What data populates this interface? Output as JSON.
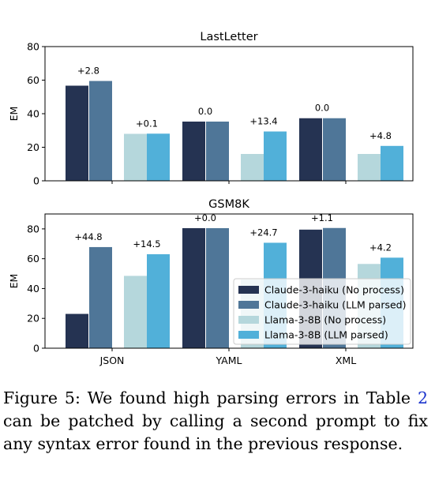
{
  "figure": {
    "colors": [
      "#253352",
      "#4f7698",
      "#b5d7dc",
      "#51b0d9"
    ],
    "legend_placement": "lower-right"
  },
  "chart_data": [
    {
      "type": "bar",
      "title": "LastLetter",
      "ylabel": "EM",
      "ylim": [
        0,
        80
      ],
      "yticks": [
        0,
        20,
        40,
        60,
        80
      ],
      "categories": [
        "JSON",
        "YAML",
        "XML"
      ],
      "series": [
        {
          "name": "Claude-3-haiku (No process)",
          "values": [
            56.7,
            35.3,
            37.3
          ]
        },
        {
          "name": "Claude-3-haiku (LLM parsed)",
          "values": [
            59.5,
            35.3,
            37.3
          ]
        },
        {
          "name": "Llama-3-8B (No process)",
          "values": [
            28.0,
            16.0,
            16.0
          ]
        },
        {
          "name": "Llama-3-8B (LLM parsed)",
          "values": [
            28.1,
            29.4,
            20.8
          ]
        }
      ],
      "annotations": [
        {
          "category": "JSON",
          "group": "claude",
          "text": "+2.8"
        },
        {
          "category": "JSON",
          "group": "llama",
          "text": "+0.1"
        },
        {
          "category": "YAML",
          "group": "claude",
          "text": "0.0"
        },
        {
          "category": "YAML",
          "group": "llama",
          "text": "+13.4"
        },
        {
          "category": "XML",
          "group": "claude",
          "text": "0.0"
        },
        {
          "category": "XML",
          "group": "llama",
          "text": "+4.8"
        }
      ]
    },
    {
      "type": "bar",
      "title": "GSM8K",
      "ylabel": "EM",
      "ylim": [
        0,
        90
      ],
      "yticks": [
        0,
        20,
        40,
        60,
        80
      ],
      "categories": [
        "JSON",
        "YAML",
        "XML"
      ],
      "series": [
        {
          "name": "Claude-3-haiku (No process)",
          "values": [
            23.0,
            80.5,
            79.5
          ]
        },
        {
          "name": "Claude-3-haiku (LLM parsed)",
          "values": [
            67.8,
            80.5,
            80.6
          ]
        },
        {
          "name": "Llama-3-8B (No process)",
          "values": [
            48.5,
            46.0,
            56.5
          ]
        },
        {
          "name": "Llama-3-8B (LLM parsed)",
          "values": [
            63.0,
            70.7,
            60.7
          ]
        }
      ],
      "annotations": [
        {
          "category": "JSON",
          "group": "claude",
          "text": "+44.8"
        },
        {
          "category": "JSON",
          "group": "llama",
          "text": "+14.5"
        },
        {
          "category": "YAML",
          "group": "claude",
          "text": "+0.0"
        },
        {
          "category": "YAML",
          "group": "llama",
          "text": "+24.7"
        },
        {
          "category": "XML",
          "group": "claude",
          "text": "+1.1"
        },
        {
          "category": "XML",
          "group": "llama",
          "text": "+4.2"
        }
      ]
    }
  ],
  "caption": {
    "before": "Figure 5: We found high parsing errors in Table ",
    "ref": "2",
    "after": " can be patched by calling a second prompt to fix any syntax error found in the previous response."
  }
}
